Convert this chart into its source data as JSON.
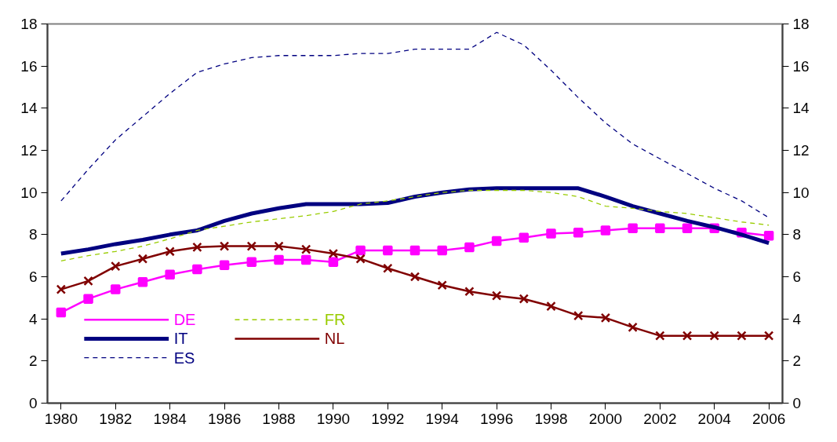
{
  "chart_data": {
    "type": "line",
    "categories": [
      "1980",
      null,
      "1982",
      null,
      "1984",
      null,
      "1986",
      null,
      "1988",
      null,
      "1990",
      null,
      "1992",
      null,
      "1994",
      null,
      "1996",
      null,
      "1998",
      null,
      "2000",
      null,
      "2002",
      null,
      "2004",
      null,
      "2006"
    ],
    "series": [
      {
        "name": "DE",
        "color": "#ff00ff",
        "marker": "square",
        "line_style": "solid",
        "values": [
          4.3,
          4.95,
          5.4,
          5.75,
          6.1,
          6.35,
          6.55,
          6.7,
          6.8,
          6.8,
          6.7,
          7.25,
          7.25,
          7.25,
          7.25,
          7.4,
          7.7,
          7.85,
          8.05,
          8.1,
          8.2,
          8.3,
          8.3,
          8.3,
          8.3,
          8.1,
          7.95
        ]
      },
      {
        "name": "FR",
        "color": "#99cc00",
        "marker": "none",
        "line_style": "dashed",
        "values": [
          6.75,
          7.0,
          7.2,
          7.45,
          7.8,
          8.2,
          8.4,
          8.6,
          8.75,
          8.9,
          9.1,
          9.45,
          9.6,
          9.8,
          10.0,
          10.1,
          10.1,
          10.1,
          10.0,
          9.8,
          9.35,
          9.25,
          9.1,
          9.0,
          8.8,
          8.6,
          8.45
        ]
      },
      {
        "name": "IT",
        "color": "#000080",
        "marker": "none",
        "line_style": "solid",
        "values": [
          7.1,
          7.3,
          7.55,
          7.75,
          8.0,
          8.2,
          8.65,
          9.0,
          9.25,
          9.45,
          9.45,
          9.45,
          9.5,
          9.8,
          10.0,
          10.15,
          10.2,
          10.2,
          10.2,
          10.2,
          9.8,
          9.35,
          9.0,
          8.65,
          8.35,
          8.0,
          7.6
        ]
      },
      {
        "name": "NL",
        "color": "#800000",
        "marker": "cross",
        "line_style": "solid",
        "values": [
          5.4,
          5.8,
          6.5,
          6.85,
          7.2,
          7.4,
          7.45,
          7.45,
          7.45,
          7.3,
          7.1,
          6.85,
          6.4,
          6.0,
          5.6,
          5.3,
          5.1,
          4.95,
          4.6,
          4.15,
          4.05,
          3.6,
          3.2,
          3.2,
          3.2,
          3.2,
          3.2
        ]
      },
      {
        "name": "ES",
        "color": "#000080",
        "marker": "none",
        "line_style": "dashed",
        "values": [
          9.6,
          11.1,
          12.5,
          13.6,
          14.7,
          15.7,
          16.1,
          16.4,
          16.5,
          16.5,
          16.5,
          16.6,
          16.6,
          16.8,
          16.8,
          16.8,
          17.6,
          17.0,
          15.8,
          14.5,
          13.3,
          12.3,
          11.6,
          10.9,
          10.2,
          9.6,
          8.8
        ]
      }
    ],
    "ylim": [
      0,
      18
    ],
    "yticks": [
      0,
      2,
      4,
      6,
      8,
      10,
      12,
      14,
      16,
      18
    ],
    "y2lim": [
      0,
      18
    ],
    "y2ticks": [
      0,
      2,
      4,
      6,
      8,
      10,
      12,
      14,
      16,
      18
    ],
    "grid": false,
    "legend": "bottom left"
  }
}
